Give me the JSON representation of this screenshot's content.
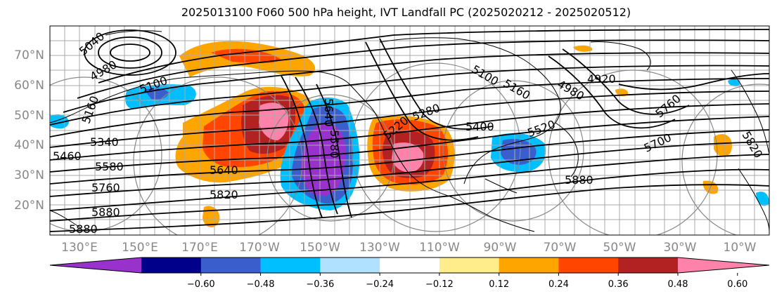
{
  "title": "2025013100 F060 500 hPa height, IVT Landfall PC (2025020212 - 2025020512)",
  "map": {
    "lat_labels": [
      "70°N",
      "60°N",
      "50°N",
      "40°N",
      "30°N",
      "20°N"
    ],
    "lon_labels": [
      "130°E",
      "150°E",
      "170°E",
      "170°W",
      "150°W",
      "130°W",
      "110°W",
      "90°W",
      "70°W",
      "50°W",
      "30°W",
      "10°W"
    ],
    "contour_labels": [
      "5040",
      "4980",
      "5100",
      "5160",
      "5340",
      "5460",
      "5580",
      "5640",
      "5760",
      "5820",
      "5880",
      "5880",
      "5880",
      "5640",
      "5280",
      "5400",
      "5100",
      "5160",
      "4920",
      "4980",
      "5520",
      "5700",
      "5760",
      "5820",
      "5220",
      "5580"
    ]
  },
  "colorbar": {
    "tick_labels": [
      "−0.60",
      "−0.48",
      "−0.36",
      "−0.24",
      "−0.12",
      "0.12",
      "0.24",
      "0.36",
      "0.48",
      "0.60"
    ],
    "colors": [
      "#9932cc",
      "#00008b",
      "#3a5fcd",
      "#00bfff",
      "#b0e2ff",
      "#ffffff",
      "#ffec8b",
      "#ffa500",
      "#ff4500",
      "#b22222",
      "#ff82ab"
    ]
  }
}
